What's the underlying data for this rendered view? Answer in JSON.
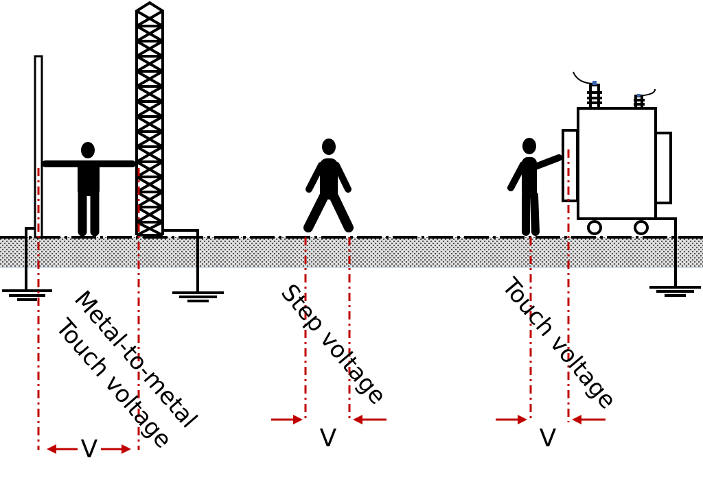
{
  "labels": {
    "metal_to_metal_line1": "Metal-to-metal",
    "metal_to_metal_line2": "Touch voltage",
    "step_voltage": "Step voltage",
    "touch_voltage": "Touch voltage",
    "v_metal": "V",
    "v_step": "V",
    "v_touch": "V"
  },
  "colors": {
    "measure_line": "#c00000",
    "outline": "#000000",
    "ground": "#9a9a9a",
    "bushing_tip": "#3a64b0"
  }
}
